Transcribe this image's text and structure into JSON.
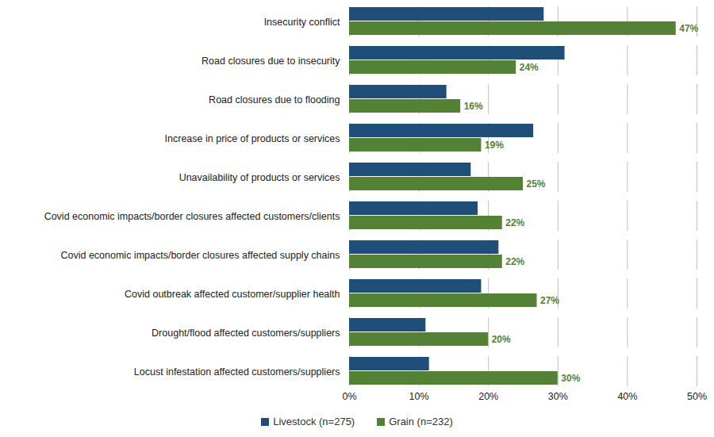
{
  "chart_data": {
    "type": "bar",
    "orientation": "horizontal",
    "categories": [
      "Insecurity conflict",
      "Road closures due to insecurity",
      "Road closures due to flooding",
      "Increase in price of products or services",
      "Unavailability of products or services",
      "Covid economic impacts/border closures affected customers/clients",
      "Covid economic impacts/border closures affected supply chains",
      "Covid outbreak affected customer/supplier health",
      "Drought/flood affected customers/suppliers",
      "Locust infestation affected customers/suppliers"
    ],
    "series": [
      {
        "name": "Livestock (n=275)",
        "color": "#1f4e79",
        "data_labels": false,
        "values": [
          28,
          31,
          14,
          26.5,
          17.5,
          18.5,
          21.5,
          19,
          11,
          11.5
        ]
      },
      {
        "name": "Grain (n=232)",
        "color": "#548235",
        "data_labels": true,
        "values": [
          47,
          24,
          16,
          19,
          25,
          22,
          22,
          27,
          20,
          30
        ],
        "value_labels": [
          "47%",
          "24%",
          "16%",
          "19%",
          "25%",
          "22%",
          "22%",
          "27%",
          "20%",
          "30%"
        ]
      }
    ],
    "xlim": [
      0,
      50
    ],
    "xticks": [
      {
        "value": 0,
        "label": "0%"
      },
      {
        "value": 10,
        "label": "10%"
      },
      {
        "value": 20,
        "label": "20%"
      },
      {
        "value": 30,
        "label": "30%"
      },
      {
        "value": 40,
        "label": "40%"
      },
      {
        "value": 50,
        "label": "50%"
      }
    ],
    "grid": true,
    "legend": "bottom"
  }
}
